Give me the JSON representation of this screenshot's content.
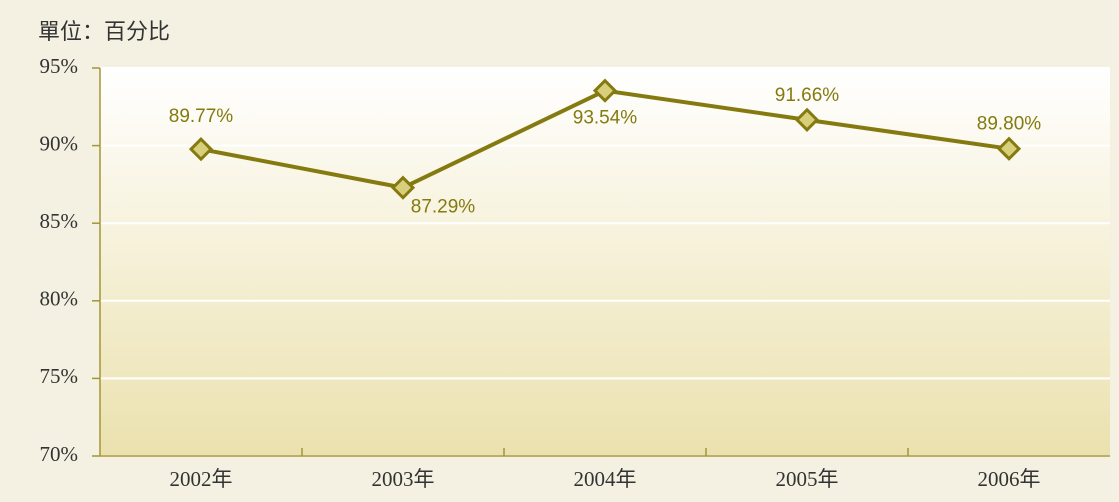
{
  "chart_data": {
    "type": "line",
    "unit_label": "單位：百分比",
    "categories": [
      "2002年",
      "2003年",
      "2004年",
      "2005年",
      "2006年"
    ],
    "series": [
      {
        "name": null,
        "color": "#857a10",
        "values": [
          89.77,
          87.29,
          93.54,
          91.66,
          89.8
        ],
        "value_labels": [
          "89.77%",
          "87.29%",
          "93.54%",
          "91.66%",
          "89.80%"
        ]
      }
    ],
    "ylim": [
      70,
      95
    ],
    "yticks": [
      {
        "value": 70,
        "label": "70%"
      },
      {
        "value": 75,
        "label": "75%"
      },
      {
        "value": 80,
        "label": "80%"
      },
      {
        "value": 85,
        "label": "85%"
      },
      {
        "value": 90,
        "label": "90%"
      },
      {
        "value": 95,
        "label": "95%"
      }
    ],
    "grid": true
  }
}
